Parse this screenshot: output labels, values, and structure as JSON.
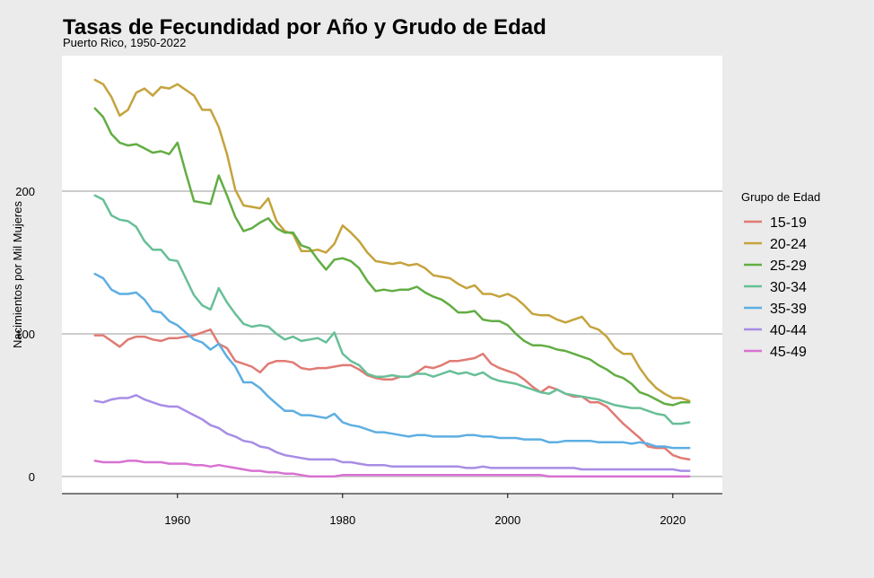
{
  "chart_data": {
    "type": "line",
    "title": "Tasas de Fecundidad por Año y Grudo de Edad",
    "subtitle": "Puerto Rico, 1950-2022",
    "xlabel": "",
    "ylabel": "Nacimientos por Mil Mujeres",
    "xlim": [
      1946,
      2026
    ],
    "ylim": [
      -12,
      295
    ],
    "x_ticks": [
      1960,
      1980,
      2000,
      2020
    ],
    "y_ticks": [
      0,
      100,
      200
    ],
    "grid": "horizontal",
    "legend_title": "Grupo de Edad",
    "legend_position": "right",
    "series": [
      {
        "name": "15-19",
        "color": "#e07b74",
        "x": [
          1950,
          1951,
          1952,
          1953,
          1954,
          1955,
          1956,
          1957,
          1958,
          1959,
          1960,
          1961,
          1962,
          1963,
          1964,
          1965,
          1966,
          1967,
          1968,
          1969,
          1970,
          1971,
          1972,
          1973,
          1974,
          1975,
          1976,
          1977,
          1978,
          1979,
          1980,
          1981,
          1982,
          1983,
          1984,
          1985,
          1986,
          1987,
          1988,
          1989,
          1990,
          1991,
          1992,
          1993,
          1994,
          1995,
          1996,
          1997,
          1998,
          1999,
          2000,
          2001,
          2002,
          2003,
          2004,
          2005,
          2006,
          2007,
          2008,
          2009,
          2010,
          2011,
          2012,
          2013,
          2014,
          2015,
          2016,
          2017,
          2018,
          2019,
          2020,
          2021,
          2022
        ],
        "values": [
          99,
          99,
          95,
          91,
          96,
          98,
          98,
          96,
          95,
          97,
          97,
          98,
          99,
          101,
          103,
          93,
          90,
          81,
          79,
          77,
          73,
          79,
          81,
          81,
          80,
          76,
          75,
          76,
          76,
          77,
          78,
          78,
          75,
          71,
          69,
          68,
          68,
          70,
          70,
          73,
          77,
          76,
          78,
          81,
          81,
          82,
          83,
          86,
          79,
          76,
          74,
          72,
          68,
          63,
          59,
          63,
          61,
          58,
          56,
          56,
          52,
          52,
          49,
          43,
          37,
          32,
          27,
          21,
          20,
          20,
          15,
          13,
          12
        ]
      },
      {
        "name": "20-24",
        "color": "#c5a33d",
        "x": [
          1950,
          1951,
          1952,
          1953,
          1954,
          1955,
          1956,
          1957,
          1958,
          1959,
          1960,
          1961,
          1962,
          1963,
          1964,
          1965,
          1966,
          1967,
          1968,
          1969,
          1970,
          1971,
          1972,
          1973,
          1974,
          1975,
          1976,
          1977,
          1978,
          1979,
          1980,
          1981,
          1982,
          1983,
          1984,
          1985,
          1986,
          1987,
          1988,
          1989,
          1990,
          1991,
          1992,
          1993,
          1994,
          1995,
          1996,
          1997,
          1998,
          1999,
          2000,
          2001,
          2002,
          2003,
          2004,
          2005,
          2006,
          2007,
          2008,
          2009,
          2010,
          2011,
          2012,
          2013,
          2014,
          2015,
          2016,
          2017,
          2018,
          2019,
          2020,
          2021,
          2022
        ],
        "values": [
          278,
          275,
          266,
          253,
          257,
          269,
          272,
          267,
          273,
          272,
          275,
          271,
          267,
          257,
          257,
          245,
          226,
          201,
          190,
          189,
          188,
          195,
          179,
          172,
          170,
          158,
          158,
          159,
          157,
          163,
          176,
          171,
          165,
          157,
          151,
          150,
          149,
          150,
          148,
          149,
          146,
          141,
          140,
          139,
          135,
          132,
          134,
          128,
          128,
          126,
          128,
          125,
          120,
          114,
          113,
          113,
          110,
          108,
          110,
          112,
          105,
          103,
          98,
          90,
          86,
          86,
          76,
          68,
          62,
          58,
          55,
          55,
          53
        ]
      },
      {
        "name": "25-29",
        "color": "#62ad43",
        "x": [
          1950,
          1951,
          1952,
          1953,
          1954,
          1955,
          1956,
          1957,
          1958,
          1959,
          1960,
          1961,
          1962,
          1963,
          1964,
          1965,
          1966,
          1967,
          1968,
          1969,
          1970,
          1971,
          1972,
          1973,
          1974,
          1975,
          1976,
          1977,
          1978,
          1979,
          1980,
          1981,
          1982,
          1983,
          1984,
          1985,
          1986,
          1987,
          1988,
          1989,
          1990,
          1991,
          1992,
          1993,
          1994,
          1995,
          1996,
          1997,
          1998,
          1999,
          2000,
          2001,
          2002,
          2003,
          2004,
          2005,
          2006,
          2007,
          2008,
          2009,
          2010,
          2011,
          2012,
          2013,
          2014,
          2015,
          2016,
          2017,
          2018,
          2019,
          2020,
          2021,
          2022
        ],
        "values": [
          258,
          252,
          240,
          234,
          232,
          233,
          230,
          227,
          228,
          226,
          234,
          213,
          193,
          192,
          191,
          211,
          197,
          182,
          172,
          174,
          178,
          181,
          174,
          171,
          171,
          162,
          160,
          152,
          145,
          152,
          153,
          151,
          146,
          137,
          130,
          131,
          130,
          131,
          131,
          133,
          129,
          126,
          124,
          120,
          115,
          115,
          116,
          110,
          109,
          109,
          106,
          100,
          95,
          92,
          92,
          91,
          89,
          88,
          86,
          84,
          82,
          78,
          75,
          71,
          69,
          65,
          59,
          57,
          54,
          51,
          50,
          52,
          52
        ]
      },
      {
        "name": "30-34",
        "color": "#67bf98",
        "x": [
          1950,
          1951,
          1952,
          1953,
          1954,
          1955,
          1956,
          1957,
          1958,
          1959,
          1960,
          1961,
          1962,
          1963,
          1964,
          1965,
          1966,
          1967,
          1968,
          1969,
          1970,
          1971,
          1972,
          1973,
          1974,
          1975,
          1976,
          1977,
          1978,
          1979,
          1980,
          1981,
          1982,
          1983,
          1984,
          1985,
          1986,
          1987,
          1988,
          1989,
          1990,
          1991,
          1992,
          1993,
          1994,
          1995,
          1996,
          1997,
          1998,
          1999,
          2000,
          2001,
          2002,
          2003,
          2004,
          2005,
          2006,
          2007,
          2008,
          2009,
          2010,
          2011,
          2012,
          2013,
          2014,
          2015,
          2016,
          2017,
          2018,
          2019,
          2020,
          2021,
          2022
        ],
        "values": [
          197,
          194,
          183,
          180,
          179,
          175,
          165,
          159,
          159,
          152,
          151,
          139,
          127,
          120,
          117,
          132,
          122,
          114,
          107,
          105,
          106,
          105,
          100,
          96,
          98,
          95,
          96,
          97,
          94,
          101,
          86,
          81,
          78,
          72,
          70,
          70,
          71,
          70,
          70,
          72,
          72,
          70,
          72,
          74,
          72,
          73,
          71,
          73,
          69,
          67,
          66,
          65,
          63,
          61,
          59,
          58,
          61,
          58,
          57,
          56,
          55,
          54,
          52,
          50,
          49,
          48,
          48,
          46,
          44,
          43,
          37,
          37,
          38
        ]
      },
      {
        "name": "35-39",
        "color": "#5daee2",
        "x": [
          1950,
          1951,
          1952,
          1953,
          1954,
          1955,
          1956,
          1957,
          1958,
          1959,
          1960,
          1961,
          1962,
          1963,
          1964,
          1965,
          1966,
          1967,
          1968,
          1969,
          1970,
          1971,
          1972,
          1973,
          1974,
          1975,
          1976,
          1977,
          1978,
          1979,
          1980,
          1981,
          1982,
          1983,
          1984,
          1985,
          1986,
          1987,
          1988,
          1989,
          1990,
          1991,
          1992,
          1993,
          1994,
          1995,
          1996,
          1997,
          1998,
          1999,
          2000,
          2001,
          2002,
          2003,
          2004,
          2005,
          2006,
          2007,
          2008,
          2009,
          2010,
          2011,
          2012,
          2013,
          2014,
          2015,
          2016,
          2017,
          2018,
          2019,
          2020,
          2021,
          2022
        ],
        "values": [
          142,
          139,
          131,
          128,
          128,
          129,
          124,
          116,
          115,
          109,
          106,
          101,
          96,
          94,
          89,
          93,
          84,
          77,
          66,
          66,
          62,
          56,
          51,
          46,
          46,
          43,
          43,
          42,
          41,
          44,
          38,
          36,
          35,
          33,
          31,
          31,
          30,
          29,
          28,
          29,
          29,
          28,
          28,
          28,
          28,
          29,
          29,
          28,
          28,
          27,
          27,
          27,
          26,
          26,
          26,
          24,
          24,
          25,
          25,
          25,
          25,
          24,
          24,
          24,
          24,
          23,
          24,
          23,
          21,
          21,
          20,
          20,
          20
        ]
      },
      {
        "name": "40-44",
        "color": "#a78de5",
        "x": [
          1950,
          1951,
          1952,
          1953,
          1954,
          1955,
          1956,
          1957,
          1958,
          1959,
          1960,
          1961,
          1962,
          1963,
          1964,
          1965,
          1966,
          1967,
          1968,
          1969,
          1970,
          1971,
          1972,
          1973,
          1974,
          1975,
          1976,
          1977,
          1978,
          1979,
          1980,
          1981,
          1982,
          1983,
          1984,
          1985,
          1986,
          1987,
          1988,
          1989,
          1990,
          1991,
          1992,
          1993,
          1994,
          1995,
          1996,
          1997,
          1998,
          1999,
          2000,
          2001,
          2002,
          2003,
          2004,
          2005,
          2006,
          2007,
          2008,
          2009,
          2010,
          2011,
          2012,
          2013,
          2014,
          2015,
          2016,
          2017,
          2018,
          2019,
          2020,
          2021,
          2022
        ],
        "values": [
          53,
          52,
          54,
          55,
          55,
          57,
          54,
          52,
          50,
          49,
          49,
          46,
          43,
          40,
          36,
          34,
          30,
          28,
          25,
          24,
          21,
          20,
          17,
          15,
          14,
          13,
          12,
          12,
          12,
          12,
          10,
          10,
          9,
          8,
          8,
          8,
          7,
          7,
          7,
          7,
          7,
          7,
          7,
          7,
          7,
          6,
          6,
          7,
          6,
          6,
          6,
          6,
          6,
          6,
          6,
          6,
          6,
          6,
          6,
          5,
          5,
          5,
          5,
          5,
          5,
          5,
          5,
          5,
          5,
          5,
          5,
          4,
          4
        ]
      },
      {
        "name": "45-49",
        "color": "#d772d1",
        "x": [
          1950,
          1951,
          1952,
          1953,
          1954,
          1955,
          1956,
          1957,
          1958,
          1959,
          1960,
          1961,
          1962,
          1963,
          1964,
          1965,
          1966,
          1967,
          1968,
          1969,
          1970,
          1971,
          1972,
          1973,
          1974,
          1975,
          1976,
          1977,
          1978,
          1979,
          1980,
          1981,
          1982,
          1983,
          1984,
          1985,
          1986,
          1987,
          1988,
          1989,
          1990,
          1991,
          1992,
          1993,
          1994,
          1995,
          1996,
          1997,
          1998,
          1999,
          2000,
          2001,
          2002,
          2003,
          2004,
          2005,
          2006,
          2007,
          2008,
          2009,
          2010,
          2011,
          2012,
          2013,
          2014,
          2015,
          2016,
          2017,
          2018,
          2019,
          2020,
          2021,
          2022
        ],
        "values": [
          11,
          10,
          10,
          10,
          11,
          11,
          10,
          10,
          10,
          9,
          9,
          9,
          8,
          8,
          7,
          8,
          7,
          6,
          5,
          4,
          4,
          3,
          3,
          2,
          2,
          1,
          0,
          0,
          0,
          0,
          1,
          1,
          1,
          1,
          1,
          1,
          1,
          1,
          1,
          1,
          1,
          1,
          1,
          1,
          1,
          1,
          1,
          1,
          1,
          1,
          1,
          1,
          1,
          1,
          1,
          0,
          0,
          0,
          0,
          0,
          0,
          0,
          0,
          0,
          0,
          0,
          0,
          0,
          0,
          0,
          0,
          0,
          0
        ]
      }
    ]
  }
}
